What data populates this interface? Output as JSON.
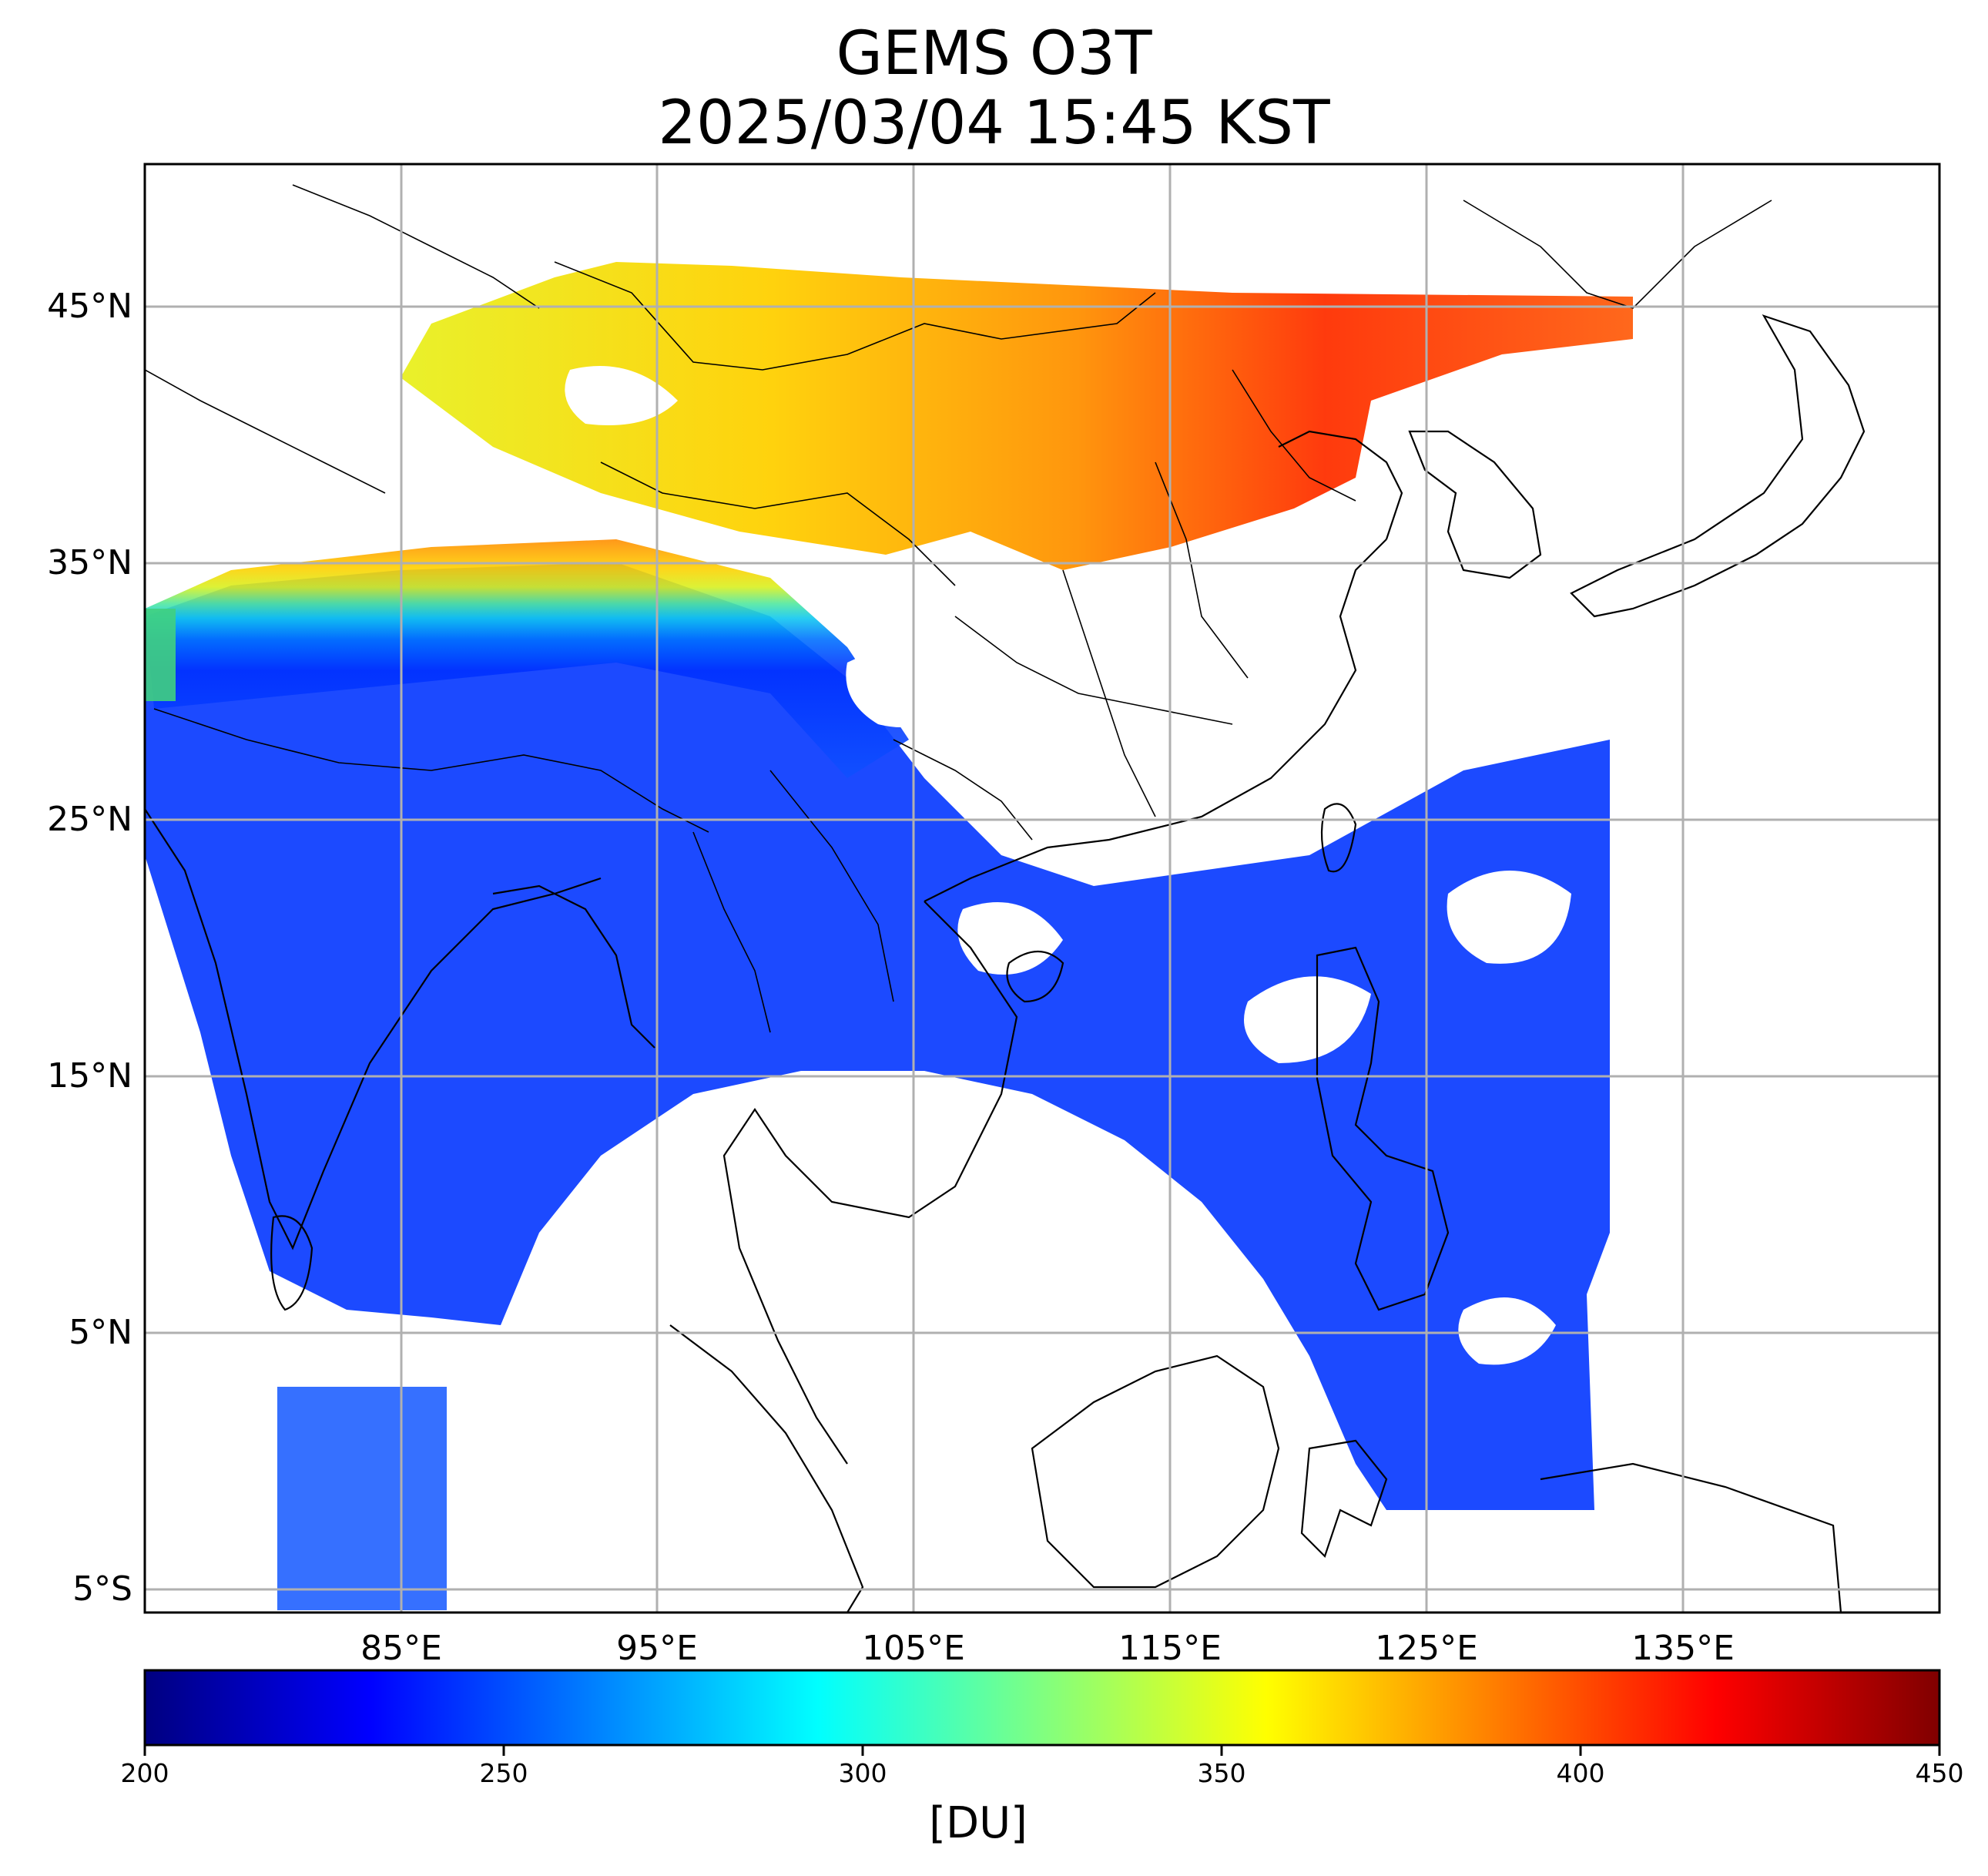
{
  "title": {
    "line1": "GEMS O3T",
    "line2": "2025/03/04 15:45 KST"
  },
  "map": {
    "lon_range": [
      75,
      145
    ],
    "lat_range": [
      -6,
      50.5
    ],
    "lat_ticks": [
      {
        "value": 45,
        "label": "45°N"
      },
      {
        "value": 35,
        "label": "35°N"
      },
      {
        "value": 25,
        "label": "25°N"
      },
      {
        "value": 15,
        "label": "15°N"
      },
      {
        "value": 5,
        "label": "5°N"
      },
      {
        "value": -5,
        "label": "5°S"
      }
    ],
    "lon_ticks": [
      {
        "value": 85,
        "label": "85°E"
      },
      {
        "value": 95,
        "label": "95°E"
      },
      {
        "value": 105,
        "label": "105°E"
      },
      {
        "value": 115,
        "label": "115°E"
      },
      {
        "value": 125,
        "label": "125°E"
      },
      {
        "value": 135,
        "label": "135°E"
      }
    ],
    "gridlines": true,
    "grid_color": "#b0b0b0",
    "variable": "total column ozone"
  },
  "colorbar": {
    "colormap": "jet",
    "min": 200,
    "max": 450,
    "ticks": [
      "200",
      "250",
      "300",
      "350",
      "400",
      "450"
    ],
    "tick_values": [
      200,
      250,
      300,
      350,
      400,
      450
    ],
    "unit": "[DU]",
    "orientation": "horizontal",
    "stops": [
      "#000080",
      "#0000ff",
      "#0080ff",
      "#00ffff",
      "#80ff80",
      "#ffff00",
      "#ff8000",
      "#ff0000",
      "#800000"
    ]
  }
}
